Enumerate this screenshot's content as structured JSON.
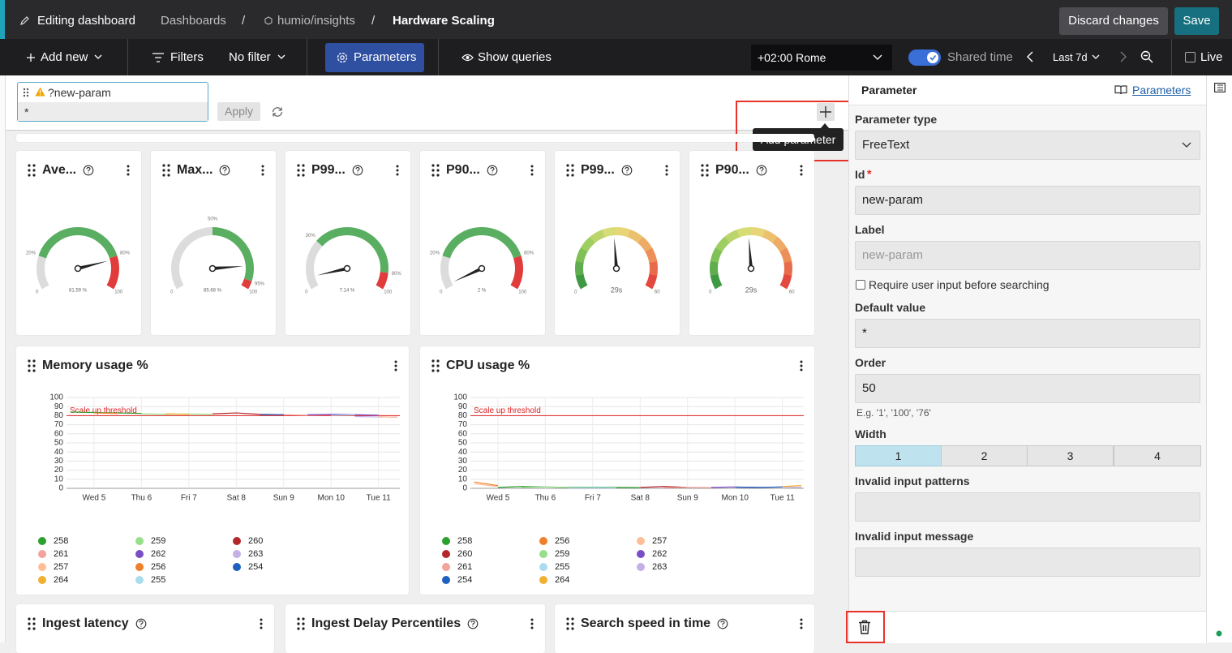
{
  "header": {
    "edit_label": "Editing dashboard",
    "breadcrumbs": [
      "Dashboards",
      "humio/insights",
      "Hardware Scaling"
    ],
    "separator": "/",
    "discard": "Discard changes",
    "save": "Save"
  },
  "toolbar": {
    "add_new": "Add new",
    "filters": "Filters",
    "filter_value": "No filter",
    "parameters": "Parameters",
    "show_queries": "Show queries",
    "timezone": "+02:00 Rome",
    "shared_time": "Shared time",
    "time_range": "Last 7d",
    "live": "Live"
  },
  "parameter_bar": {
    "name": "?new-param",
    "value": "*",
    "apply": "Apply",
    "tooltip": "Add parameter"
  },
  "gauge_colors": {
    "track": "#dcdcdc",
    "ok": "#5aae61",
    "bad": "#e23b3b",
    "gradient": [
      "#2f8f3f",
      "#8fca5c",
      "#e6df7c",
      "#f0a060",
      "#e03838"
    ]
  },
  "gauges": [
    {
      "title": "Ave...",
      "style": "threshold",
      "min": 0,
      "max": 100,
      "value": 81.59,
      "value_label": "81.59 %",
      "thresholds": [
        {
          "value": 20,
          "label": "20%"
        },
        {
          "value": 80,
          "label": "80%"
        }
      ]
    },
    {
      "title": "Max...",
      "style": "threshold",
      "min": 0,
      "max": 100,
      "value": 85.68,
      "value_label": "85.68 %",
      "thresholds": [
        {
          "value": 50,
          "label": "50%"
        },
        {
          "value": 95,
          "label": "95%"
        }
      ]
    },
    {
      "title": "P99...",
      "style": "threshold",
      "min": 0,
      "max": 100,
      "value": 7.14,
      "value_label": "7.14 %",
      "thresholds": [
        {
          "value": 30,
          "label": "30%"
        },
        {
          "value": 90,
          "label": "90%"
        }
      ]
    },
    {
      "title": "P90...",
      "style": "threshold",
      "min": 0,
      "max": 100,
      "value": 2,
      "value_label": "2 %",
      "thresholds": [
        {
          "value": 20,
          "label": "20%"
        },
        {
          "value": 80,
          "label": "80%"
        }
      ]
    },
    {
      "title": "P99...",
      "style": "gradient",
      "min": 0,
      "max": 60,
      "value": 29,
      "value_label": "29s"
    },
    {
      "title": "P90...",
      "style": "gradient",
      "min": 0,
      "max": 60,
      "value": 29,
      "value_label": "29s"
    }
  ],
  "line_charts": [
    {
      "type": "line",
      "title": "Memory usage %",
      "xlim": [
        4.42,
        11.45
      ],
      "ylim": [
        0,
        100
      ],
      "yticks": [
        0,
        10,
        20,
        30,
        40,
        50,
        60,
        70,
        80,
        90,
        100
      ],
      "xticks": [
        {
          "value": 5,
          "label": "Wed 5"
        },
        {
          "value": 6,
          "label": "Thu 6"
        },
        {
          "value": 7,
          "label": "Fri 7"
        },
        {
          "value": 8,
          "label": "Sat 8"
        },
        {
          "value": 9,
          "label": "Sun 9"
        },
        {
          "value": 10,
          "label": "Mon 10"
        },
        {
          "value": 11,
          "label": "Tue 11"
        }
      ],
      "grid": true,
      "threshold": {
        "value": 80,
        "label": "Scale up threshold",
        "color": "#e02020"
      },
      "x": [
        4.5,
        5,
        5.5,
        6,
        6.5,
        7,
        7.5,
        8,
        8.5,
        9,
        9.5,
        10,
        10.5,
        11,
        11.4
      ],
      "series": [
        {
          "name": "258",
          "color": "#2ca02c",
          "values": [
            84,
            83.5,
            83,
            82.5,
            null,
            null,
            null,
            null,
            null,
            null,
            null,
            null,
            null,
            null,
            null
          ]
        },
        {
          "name": "259",
          "color": "#98df8a",
          "values": [
            null,
            null,
            null,
            82,
            81.5,
            81.8,
            81.5,
            null,
            null,
            null,
            null,
            null,
            null,
            null,
            null
          ]
        },
        {
          "name": "260",
          "color": "#b5262b",
          "values": [
            null,
            null,
            null,
            null,
            null,
            null,
            82,
            83,
            81.5,
            81,
            null,
            null,
            null,
            null,
            null
          ]
        },
        {
          "name": "261",
          "color": "#f2a39b",
          "values": [
            null,
            null,
            null,
            null,
            null,
            null,
            null,
            null,
            null,
            81,
            80.5,
            81,
            null,
            null,
            null
          ]
        },
        {
          "name": "262",
          "color": "#7a4fc6",
          "values": [
            null,
            null,
            null,
            null,
            null,
            null,
            null,
            null,
            null,
            null,
            81,
            81.5,
            81,
            80.5,
            null
          ]
        },
        {
          "name": "263",
          "color": "#c4afe6",
          "values": [
            null,
            null,
            null,
            null,
            null,
            null,
            null,
            null,
            null,
            null,
            null,
            null,
            79,
            78.5,
            78.5
          ]
        },
        {
          "name": "257",
          "color": "#ffbe98",
          "values": [
            null,
            null,
            null,
            null,
            null,
            null,
            null,
            null,
            null,
            null,
            null,
            null,
            null,
            79,
            78
          ]
        },
        {
          "name": "256",
          "color": "#f07f2a",
          "values": [
            null,
            83,
            82.5,
            null,
            null,
            null,
            null,
            null,
            null,
            null,
            null,
            null,
            null,
            null,
            null
          ]
        },
        {
          "name": "254",
          "color": "#1f5fbf",
          "values": [
            null,
            null,
            null,
            null,
            null,
            null,
            null,
            null,
            81,
            81.2,
            null,
            null,
            null,
            null,
            null
          ]
        },
        {
          "name": "264",
          "color": "#f0b030",
          "values": [
            null,
            null,
            null,
            null,
            82,
            81.5,
            null,
            null,
            null,
            null,
            null,
            null,
            null,
            null,
            null
          ]
        },
        {
          "name": "255",
          "color": "#aadcef",
          "values": [
            null,
            null,
            null,
            null,
            null,
            null,
            null,
            null,
            null,
            null,
            null,
            80.5,
            80.8,
            null,
            null
          ]
        }
      ]
    },
    {
      "type": "line",
      "title": "CPU usage %",
      "xlim": [
        4.42,
        11.45
      ],
      "ylim": [
        0,
        100
      ],
      "yticks": [
        0,
        10,
        20,
        30,
        40,
        50,
        60,
        70,
        80,
        90,
        100
      ],
      "xticks": [
        {
          "value": 5,
          "label": "Wed 5"
        },
        {
          "value": 6,
          "label": "Thu 6"
        },
        {
          "value": 7,
          "label": "Fri 7"
        },
        {
          "value": 8,
          "label": "Sat 8"
        },
        {
          "value": 9,
          "label": "Sun 9"
        },
        {
          "value": 10,
          "label": "Mon 10"
        },
        {
          "value": 11,
          "label": "Tue 11"
        }
      ],
      "grid": true,
      "threshold": {
        "value": 80,
        "label": "Scale up threshold",
        "color": "#e02020"
      },
      "x": [
        4.5,
        5,
        5.5,
        6,
        6.5,
        7,
        7.5,
        8,
        8.5,
        9,
        9.5,
        10,
        10.5,
        11,
        11.4
      ],
      "series": [
        {
          "name": "258",
          "color": "#2ca02c",
          "values": [
            null,
            1,
            2,
            1.5,
            1,
            1.2,
            1,
            0.8,
            null,
            null,
            null,
            null,
            null,
            null,
            null
          ]
        },
        {
          "name": "256",
          "color": "#f07f2a",
          "values": [
            7,
            3,
            null,
            null,
            null,
            null,
            null,
            null,
            null,
            null,
            null,
            null,
            null,
            null,
            null
          ]
        },
        {
          "name": "257",
          "color": "#ffbe98",
          "values": [
            5,
            2,
            null,
            null,
            null,
            null,
            null,
            null,
            null,
            null,
            null,
            null,
            null,
            null,
            null
          ]
        },
        {
          "name": "260",
          "color": "#b5262b",
          "values": [
            null,
            null,
            null,
            null,
            null,
            null,
            null,
            1,
            2,
            1,
            null,
            null,
            null,
            null,
            null
          ]
        },
        {
          "name": "259",
          "color": "#98df8a",
          "values": [
            null,
            null,
            1,
            1.5,
            1,
            null,
            null,
            null,
            null,
            null,
            null,
            null,
            null,
            null,
            null
          ]
        },
        {
          "name": "262",
          "color": "#7a4fc6",
          "values": [
            null,
            null,
            null,
            null,
            null,
            null,
            null,
            null,
            null,
            null,
            1,
            1.5,
            1,
            null,
            null
          ]
        },
        {
          "name": "261",
          "color": "#f2a39b",
          "values": [
            null,
            null,
            null,
            null,
            null,
            null,
            null,
            null,
            0.5,
            1,
            0.8,
            null,
            null,
            null,
            null
          ]
        },
        {
          "name": "255",
          "color": "#aadcef",
          "values": [
            null,
            null,
            null,
            null,
            0.5,
            0.8,
            0.5,
            null,
            null,
            null,
            null,
            null,
            null,
            null,
            null
          ]
        },
        {
          "name": "263",
          "color": "#c4afe6",
          "values": [
            null,
            null,
            null,
            null,
            null,
            null,
            null,
            null,
            null,
            null,
            null,
            null,
            1,
            1.5,
            1
          ]
        },
        {
          "name": "254",
          "color": "#1f5fbf",
          "values": [
            null,
            null,
            null,
            null,
            null,
            null,
            null,
            null,
            null,
            null,
            null,
            1.2,
            1,
            1.5,
            null
          ]
        },
        {
          "name": "264",
          "color": "#f0b030",
          "values": [
            null,
            null,
            null,
            null,
            null,
            null,
            null,
            null,
            null,
            null,
            null,
            null,
            null,
            2,
            3
          ]
        }
      ]
    }
  ],
  "bottom_widgets": [
    "Ingest latency",
    "Ingest Delay Percentiles",
    "Search speed in time"
  ],
  "panel": {
    "title": "Parameter",
    "link": "Parameters",
    "type_label": "Parameter type",
    "type_value": "FreeText",
    "id_label": "Id",
    "required_marker": "*",
    "id_value": "new-param",
    "label_label": "Label",
    "label_placeholder": "new-param",
    "checkbox": "Require user input before searching",
    "default_label": "Default value",
    "default_value": "*",
    "order_label": "Order",
    "order_value": "50",
    "order_hint": "E.g. '1', '100', '76'",
    "width_label": "Width",
    "width_options": [
      1,
      2,
      3,
      4
    ],
    "patterns_label": "Invalid input patterns",
    "message_label": "Invalid input message"
  }
}
